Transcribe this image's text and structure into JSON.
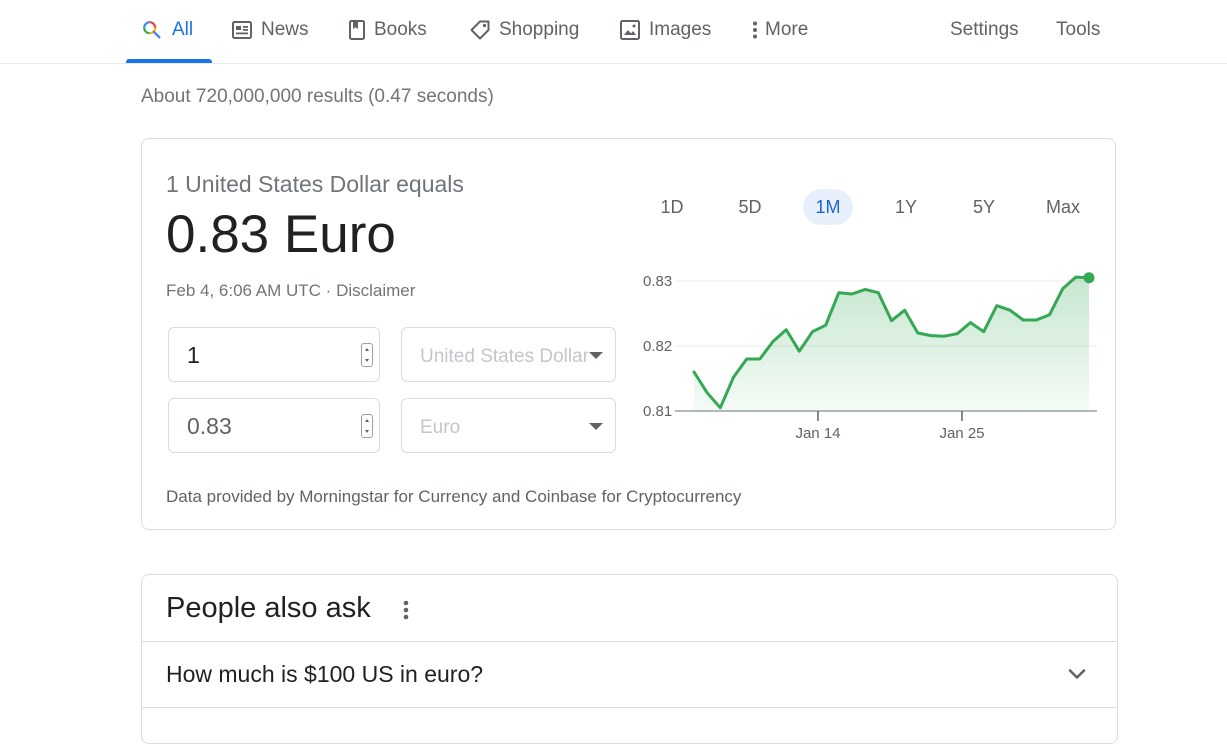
{
  "tabs": [
    {
      "label": "All",
      "icon": "search-icon",
      "active": true
    },
    {
      "label": "News",
      "icon": "news-icon"
    },
    {
      "label": "Books",
      "icon": "book-icon"
    },
    {
      "label": "Shopping",
      "icon": "tag-icon"
    },
    {
      "label": "Images",
      "icon": "image-icon"
    },
    {
      "label": "More",
      "icon": "more-vert-icon"
    }
  ],
  "tools": {
    "settings": "Settings",
    "tools": "Tools"
  },
  "results_stats": "About 720,000,000 results (0.47 seconds)",
  "converter": {
    "equals_label": "1 United States Dollar equals",
    "result": "0.83 Euro",
    "date": "Feb 4, 6:06 AM UTC",
    "separator": " · ",
    "disclaimer": "Disclaimer",
    "from_amount": "1",
    "to_amount": "0.83",
    "from_currency": "United States Dollar",
    "to_currency": "Euro",
    "source": "Data provided by Morningstar for Currency and Coinbase for Cryptocurrency",
    "ranges": [
      "1D",
      "5D",
      "1M",
      "1Y",
      "5Y",
      "Max"
    ],
    "active_range": "1M"
  },
  "chart_data": {
    "type": "area",
    "title": "",
    "xlabel": "",
    "ylabel": "",
    "x_tick_labels": [
      "Jan 14",
      "Jan 25"
    ],
    "y_ticks": [
      0.81,
      0.82,
      0.83
    ],
    "y_tick_labels": [
      "0.81",
      "0.82",
      "0.83"
    ],
    "ylim": [
      0.81,
      0.83
    ],
    "grid": true,
    "series": [
      {
        "values": [
          0.816,
          0.8128,
          0.8105,
          0.8152,
          0.818,
          0.818,
          0.8207,
          0.8225,
          0.8192,
          0.8222,
          0.8232,
          0.8282,
          0.828,
          0.8287,
          0.8282,
          0.8239,
          0.8255,
          0.822,
          0.8216,
          0.8215,
          0.8219,
          0.8236,
          0.8222,
          0.8262,
          0.8255,
          0.824,
          0.824,
          0.8248,
          0.8288,
          0.8306,
          0.8305
        ]
      }
    ],
    "last_value": 0.8305,
    "line_color": "#34a853",
    "fill_color": "#e6f4ea"
  },
  "paa": {
    "title": "People also ask",
    "questions": [
      "How much is $100 US in euro?"
    ]
  }
}
